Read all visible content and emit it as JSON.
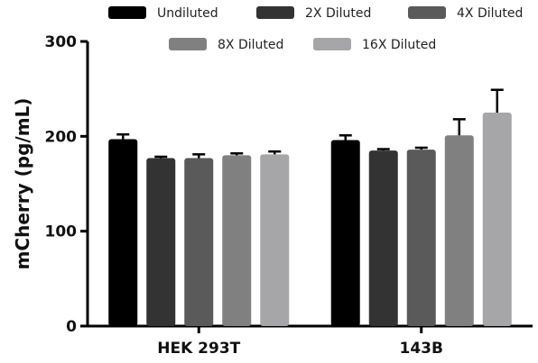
{
  "chart_data": {
    "type": "bar",
    "ylabel": "mCherry (pg/mL)",
    "xlabel": "",
    "ylim": [
      0,
      300
    ],
    "yticks": [
      0,
      100,
      200,
      300
    ],
    "categories": [
      "HEK 293T",
      "143B"
    ],
    "legend_position": "top",
    "grid": false,
    "error_bars": true,
    "series": [
      {
        "name": "Undiluted",
        "color": "#000000",
        "values": [
          197,
          196
        ],
        "errors": [
          5,
          5
        ]
      },
      {
        "name": "2X Diluted",
        "color": "#333333",
        "values": [
          177,
          185
        ],
        "errors": [
          1.5,
          1.5
        ]
      },
      {
        "name": "4X Diluted",
        "color": "#5a5a5a",
        "values": [
          177,
          186
        ],
        "errors": [
          4,
          2
        ]
      },
      {
        "name": "8X Diluted",
        "color": "#808080",
        "values": [
          180,
          201
        ],
        "errors": [
          2,
          17
        ]
      },
      {
        "name": "16X Diluted",
        "color": "#a6a6a8",
        "values": [
          181,
          225
        ],
        "errors": [
          3,
          24
        ]
      }
    ]
  }
}
